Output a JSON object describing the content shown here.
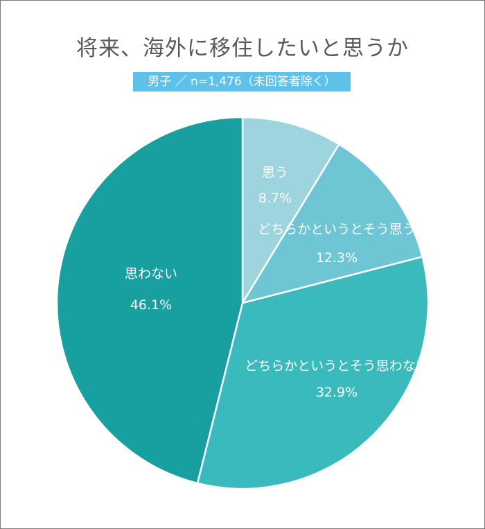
{
  "chart_data": {
    "type": "pie",
    "title": "将来、海外に移住したいと思うか",
    "subtitle": "男子 ／ n=1,476（未回答者除く）",
    "slices": [
      {
        "label": "思う",
        "value": 8.7,
        "value_label": "8.7%",
        "color": "#9dd4de"
      },
      {
        "label": "どちらかというとそう思う",
        "value": 12.3,
        "value_label": "12.3%",
        "color": "#6ec6d4"
      },
      {
        "label": "どちらかというとそう思わない",
        "value": 32.9,
        "value_label": "32.9%",
        "color": "#3bbabd"
      },
      {
        "label": "思わない",
        "value": 46.1,
        "value_label": "46.1%",
        "color": "#189f9f"
      }
    ],
    "start": "12 o'clock",
    "direction": "clockwise"
  }
}
